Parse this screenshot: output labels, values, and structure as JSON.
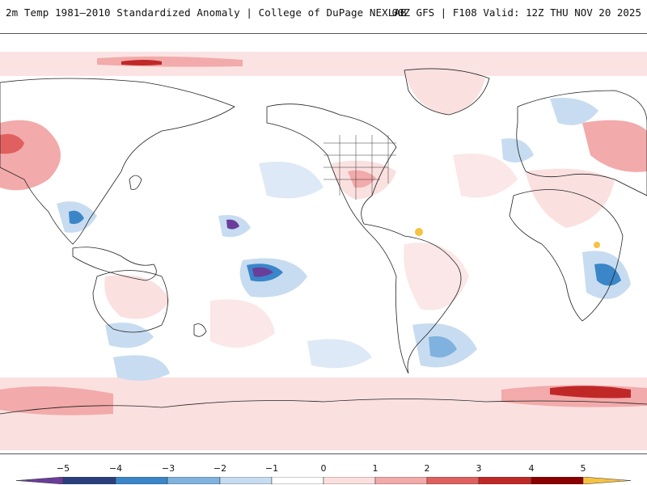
{
  "header": {
    "title_left": "2m Temp 1981–2010 Standardized Anomaly | College of DuPage NEXLAB",
    "title_right": "00Z GFS | F108 Valid: 12Z THU NOV 20 2025"
  },
  "legend": {
    "ticks": [
      "−5",
      "−4",
      "−3",
      "−2",
      "−1",
      "0",
      "1",
      "2",
      "3",
      "4",
      "5"
    ],
    "colors": [
      "#6a3d9a",
      "#2b3f7d",
      "#3a86c8",
      "#7fb2de",
      "#c7dcf0",
      "#ffffff",
      "#fbe0e0",
      "#f2aaaa",
      "#e06060",
      "#c02828",
      "#8b0000",
      "#f6c242"
    ]
  }
}
